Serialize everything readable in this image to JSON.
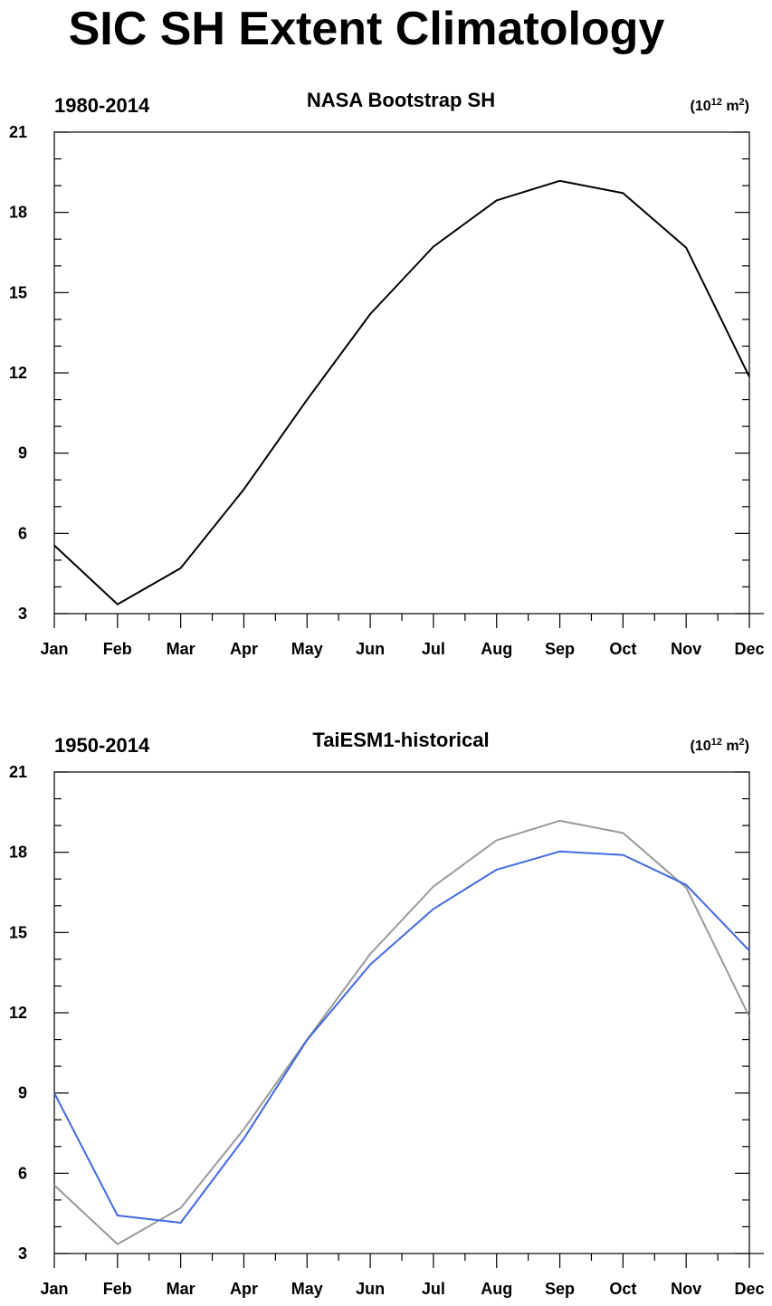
{
  "page_title": "SIC SH Extent Climatology",
  "chart_data": [
    {
      "type": "line",
      "left_title": "1980-2014",
      "title": "NASA Bootstrap SH",
      "units": "(10^12 m^2)",
      "units_base": "(10",
      "units_exp": "12",
      "units_mid": " m",
      "units_exp2": "2",
      "units_end": ")",
      "categories": [
        "Jan",
        "Feb",
        "Mar",
        "Apr",
        "May",
        "Jun",
        "Jul",
        "Aug",
        "Sep",
        "Oct",
        "Nov",
        "Dec"
      ],
      "ylim": [
        3,
        21
      ],
      "yticks": [
        3,
        6,
        9,
        12,
        15,
        18,
        21
      ],
      "series": [
        {
          "color": "#000000",
          "values": [
            5.55,
            3.35,
            4.7,
            7.65,
            11.0,
            14.2,
            16.72,
            18.45,
            19.18,
            18.72,
            16.68,
            11.85
          ]
        }
      ]
    },
    {
      "type": "line",
      "left_title": "1950-2014",
      "title": "TaiESM1-historical",
      "units": "(10^12 m^2)",
      "units_base": "(10",
      "units_exp": "12",
      "units_mid": " m",
      "units_exp2": "2",
      "units_end": ")",
      "categories": [
        "Jan",
        "Feb",
        "Mar",
        "Apr",
        "May",
        "Jun",
        "Jul",
        "Aug",
        "Sep",
        "Oct",
        "Nov",
        "Dec"
      ],
      "ylim": [
        3,
        21
      ],
      "yticks": [
        3,
        6,
        9,
        12,
        15,
        18,
        21
      ],
      "series": [
        {
          "color": "#999999",
          "values": [
            5.55,
            3.35,
            4.7,
            7.65,
            11.0,
            14.2,
            16.72,
            18.45,
            19.18,
            18.72,
            16.68,
            11.85
          ]
        },
        {
          "color": "#4169e1",
          "values": [
            9.0,
            4.42,
            4.15,
            7.3,
            10.98,
            13.8,
            15.88,
            17.35,
            18.03,
            17.9,
            16.78,
            14.32
          ]
        }
      ]
    }
  ]
}
